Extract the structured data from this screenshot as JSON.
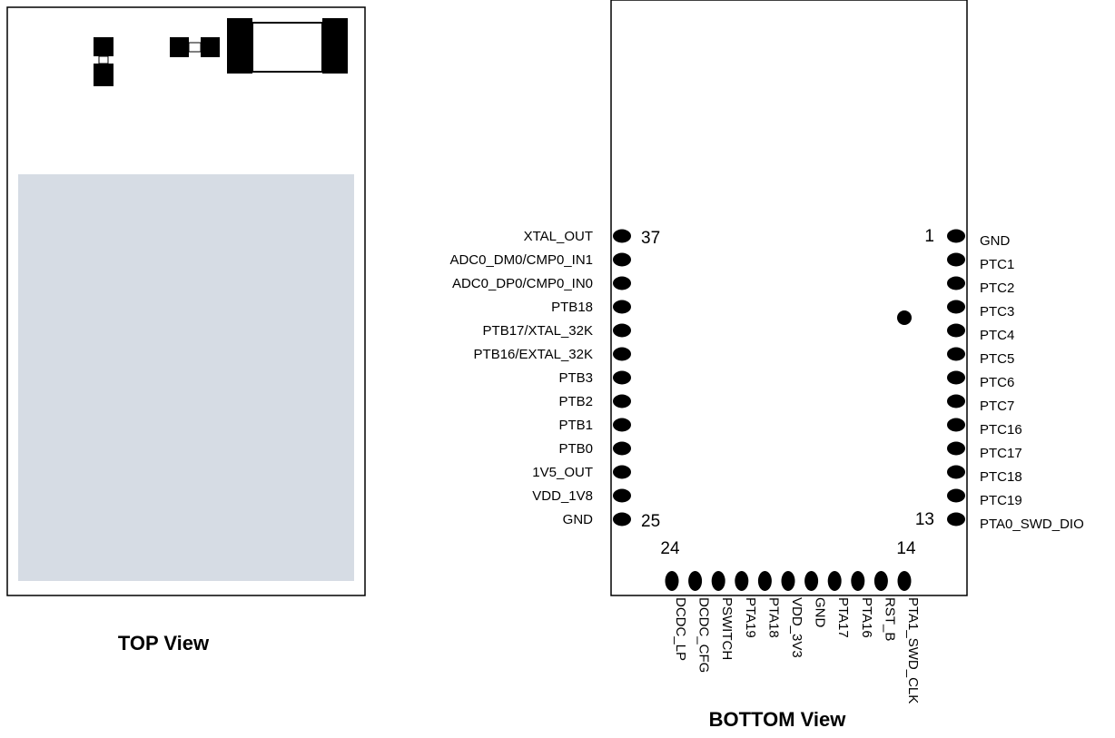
{
  "top_view": {
    "title": "TOP View",
    "antenna_area_color": "#d6dce4"
  },
  "bottom_view": {
    "title": "BOTTOM View",
    "pin1_marker": "pin-1-dot",
    "left_pins": [
      {
        "label": "XTAL_OUT",
        "number": "37"
      },
      {
        "label": "ADC0_DM0/CMP0_IN1",
        "number": ""
      },
      {
        "label": "ADC0_DP0/CMP0_IN0",
        "number": ""
      },
      {
        "label": "PTB18",
        "number": ""
      },
      {
        "label": "PTB17/XTAL_32K",
        "number": ""
      },
      {
        "label": "PTB16/EXTAL_32K",
        "number": ""
      },
      {
        "label": "PTB3",
        "number": ""
      },
      {
        "label": "PTB2",
        "number": ""
      },
      {
        "label": "PTB1",
        "number": ""
      },
      {
        "label": "PTB0",
        "number": ""
      },
      {
        "label": "1V5_OUT",
        "number": ""
      },
      {
        "label": "VDD_1V8",
        "number": ""
      },
      {
        "label": "GND",
        "number": "25"
      }
    ],
    "right_pins": [
      {
        "label": "GND",
        "number": "1"
      },
      {
        "label": "PTC1",
        "number": ""
      },
      {
        "label": "PTC2",
        "number": ""
      },
      {
        "label": "PTC3",
        "number": ""
      },
      {
        "label": "PTC4",
        "number": ""
      },
      {
        "label": "PTC5",
        "number": ""
      },
      {
        "label": "PTC6",
        "number": ""
      },
      {
        "label": "PTC7",
        "number": ""
      },
      {
        "label": "PTC16",
        "number": ""
      },
      {
        "label": "PTC17",
        "number": ""
      },
      {
        "label": "PTC18",
        "number": ""
      },
      {
        "label": "PTC19",
        "number": ""
      },
      {
        "label": "PTA0_SWD_DIO",
        "number": "13"
      }
    ],
    "bottom_pins": [
      {
        "label": "DCDC_LP",
        "number": "24"
      },
      {
        "label": "DCDC_CFG",
        "number": ""
      },
      {
        "label": "PSWITCH",
        "number": ""
      },
      {
        "label": "PTA19",
        "number": ""
      },
      {
        "label": "PTA18",
        "number": ""
      },
      {
        "label": "VDD_3V3",
        "number": ""
      },
      {
        "label": "GND",
        "number": ""
      },
      {
        "label": "PTA17",
        "number": ""
      },
      {
        "label": "PTA16",
        "number": ""
      },
      {
        "label": "RST_B",
        "number": ""
      },
      {
        "label": "PTA1_SWD_CLK",
        "number": "14"
      }
    ]
  }
}
